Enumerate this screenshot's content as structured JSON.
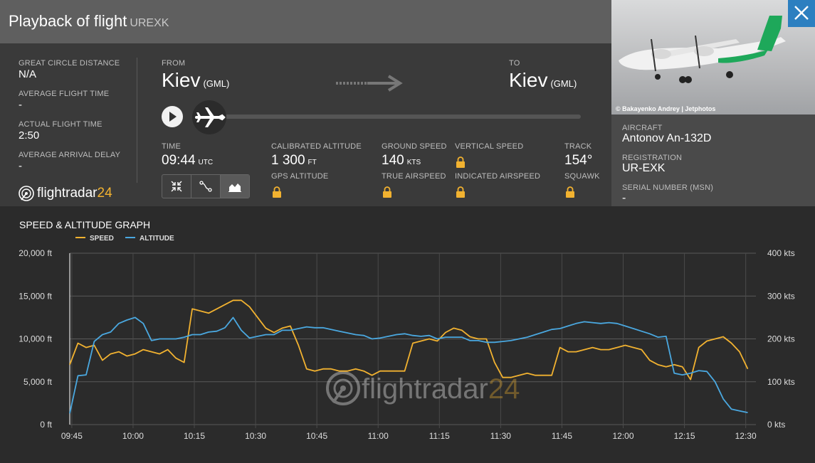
{
  "header": {
    "title": "Playback of flight",
    "callsign": "UREXK"
  },
  "stats": {
    "gcd_label": "GREAT CIRCLE DISTANCE",
    "gcd_value": "N/A",
    "aft_label": "AVERAGE FLIGHT TIME",
    "aft_value": "-",
    "actual_label": "ACTUAL FLIGHT TIME",
    "actual_value": "2:50",
    "delay_label": "AVERAGE ARRIVAL DELAY",
    "delay_value": "-"
  },
  "route": {
    "from_label": "FROM",
    "from_city": "Kiev",
    "from_code": "(GML)",
    "to_label": "TO",
    "to_city": "Kiev",
    "to_code": "(GML)"
  },
  "playback": {
    "time_label": "TIME",
    "time_value": "09:44",
    "time_unit": "UTC",
    "cal_alt_label": "CALIBRATED ALTITUDE",
    "cal_alt_value": "1 300",
    "cal_alt_unit": "FT",
    "gps_alt_label": "GPS ALTITUDE",
    "gs_label": "GROUND SPEED",
    "gs_value": "140",
    "gs_unit": "KTS",
    "tas_label": "TRUE AIRSPEED",
    "vs_label": "VERTICAL SPEED",
    "ias_label": "INDICATED AIRSPEED",
    "track_label": "TRACK",
    "track_value": "154°",
    "squawk_label": "SQUAWK",
    "progress": 0.0
  },
  "brand": {
    "logo_main": "flightradar",
    "logo_num": "24"
  },
  "photo": {
    "credit": "© Bakayenko Andrey | Jetphotos"
  },
  "aircraft": {
    "aircraft_label": "AIRCRAFT",
    "aircraft_value": "Antonov An-132D",
    "reg_label": "REGISTRATION",
    "reg_value": "UR-EXK",
    "msn_label": "SERIAL NUMBER (MSN)",
    "msn_value": "-"
  },
  "graph": {
    "title": "SPEED & ALTITUDE GRAPH"
  },
  "colors": {
    "speed": "#f2b230",
    "altitude": "#4aa8e0",
    "accent_blue": "#2c7fc0"
  },
  "chart_data": {
    "type": "line",
    "x_tick_labels": [
      "09:45",
      "10:00",
      "10:15",
      "10:30",
      "10:45",
      "11:00",
      "11:15",
      "11:30",
      "11:45",
      "12:00",
      "12:15",
      "12:30"
    ],
    "y_left_ticks": [
      "0 ft",
      "5,000 ft",
      "10,000 ft",
      "15,000 ft",
      "20,000 ft"
    ],
    "y_right_ticks": [
      "0 kts",
      "100 kts",
      "200 kts",
      "300 kts",
      "400 kts"
    ],
    "y_left_range": [
      0,
      20000
    ],
    "y_right_range": [
      0,
      400
    ],
    "legend": [
      "SPEED",
      "ALTITUDE"
    ],
    "x_minutes_range": [
      0,
      168
    ],
    "series": [
      {
        "name": "SPEED",
        "axis": "right",
        "unit": "kts",
        "x_min": [
          0,
          2,
          4,
          6,
          8,
          10,
          12,
          14,
          16,
          18,
          20,
          22,
          24,
          26,
          28,
          30,
          32,
          34,
          36,
          38,
          40,
          42,
          44,
          46,
          48,
          50,
          52,
          54,
          56,
          58,
          60,
          62,
          64,
          66,
          68,
          70,
          72,
          74,
          76,
          78,
          80,
          82,
          84,
          86,
          88,
          90,
          92,
          94,
          96,
          98,
          100,
          102,
          104,
          106,
          108,
          110,
          112,
          114,
          116,
          118,
          120,
          122,
          124,
          126,
          128,
          130,
          132,
          134,
          136,
          138,
          140,
          142,
          144,
          146,
          148,
          150,
          152,
          154,
          156,
          158,
          160,
          162,
          164,
          166
        ],
        "values": [
          140,
          190,
          180,
          185,
          150,
          165,
          170,
          160,
          165,
          175,
          170,
          165,
          175,
          155,
          145,
          270,
          265,
          260,
          270,
          280,
          290,
          290,
          275,
          250,
          225,
          215,
          225,
          230,
          185,
          130,
          125,
          130,
          130,
          125,
          125,
          130,
          125,
          115,
          125,
          125,
          125,
          125,
          190,
          195,
          200,
          195,
          215,
          225,
          220,
          205,
          200,
          200,
          145,
          110,
          110,
          115,
          120,
          115,
          115,
          115,
          180,
          170,
          170,
          175,
          180,
          175,
          175,
          180,
          185,
          180,
          175,
          150,
          140,
          135,
          140,
          135,
          105,
          180,
          195,
          200,
          205,
          190,
          170,
          130
        ]
      },
      {
        "name": "ALTITUDE",
        "axis": "left",
        "unit": "ft",
        "x_min": [
          0,
          2,
          4,
          6,
          8,
          10,
          12,
          14,
          16,
          18,
          20,
          22,
          24,
          26,
          28,
          30,
          32,
          34,
          36,
          38,
          40,
          42,
          44,
          46,
          48,
          50,
          52,
          54,
          56,
          58,
          60,
          62,
          64,
          66,
          68,
          70,
          72,
          74,
          76,
          78,
          80,
          82,
          84,
          86,
          88,
          90,
          92,
          94,
          96,
          98,
          100,
          102,
          104,
          106,
          108,
          110,
          112,
          114,
          116,
          118,
          120,
          122,
          124,
          126,
          128,
          130,
          132,
          134,
          136,
          138,
          140,
          142,
          144,
          146,
          148,
          150,
          152,
          154,
          156,
          158,
          160,
          162,
          164,
          166
        ],
        "values": [
          1300,
          5700,
          5800,
          9700,
          10500,
          10800,
          11800,
          12200,
          12500,
          11800,
          9800,
          10000,
          10000,
          10000,
          10200,
          10500,
          10500,
          10800,
          10900,
          11300,
          12500,
          11000,
          10100,
          10300,
          10500,
          10500,
          11000,
          11000,
          11200,
          11400,
          11300,
          11300,
          11100,
          10900,
          10700,
          10500,
          10400,
          10000,
          10100,
          10300,
          10500,
          10600,
          10400,
          10300,
          10400,
          10000,
          10200,
          10200,
          10200,
          9800,
          9800,
          9600,
          9600,
          9700,
          9800,
          10000,
          10200,
          10500,
          10800,
          11100,
          11200,
          11500,
          11800,
          12000,
          11900,
          11800,
          11900,
          11800,
          11500,
          11200,
          10900,
          10600,
          10200,
          10300,
          6000,
          5800,
          6000,
          6300,
          6200,
          5000,
          3000,
          1800,
          1600,
          1400
        ]
      }
    ]
  }
}
